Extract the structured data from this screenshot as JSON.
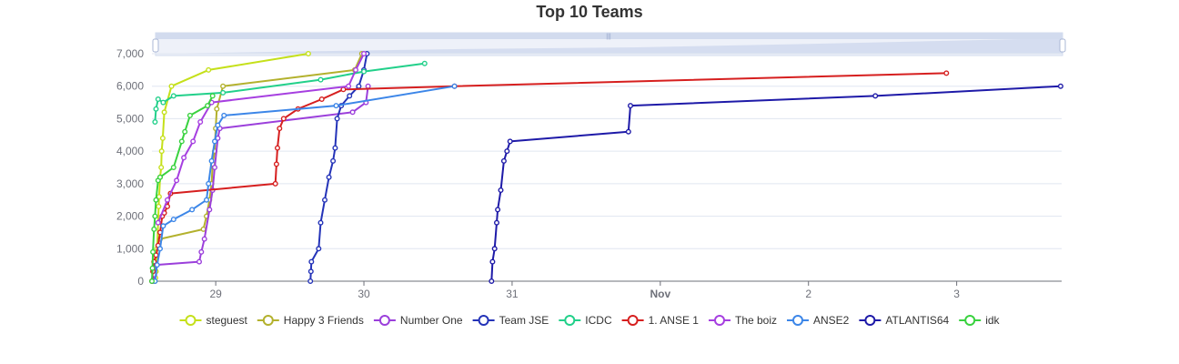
{
  "chart_data": {
    "type": "line",
    "title": "Top 10 Teams",
    "xlabel": "",
    "ylabel": "",
    "x_axis": {
      "kind": "time",
      "min": "2021-10-28T13:40:00",
      "max": "2021-11-03T17:00:00",
      "ticks": [
        {
          "value": "2021-10-29T00:00:00",
          "label": "29",
          "bold": false
        },
        {
          "value": "2021-10-30T00:00:00",
          "label": "30",
          "bold": false
        },
        {
          "value": "2021-10-31T00:00:00",
          "label": "31",
          "bold": false
        },
        {
          "value": "2021-11-01T00:00:00",
          "label": "Nov",
          "bold": true
        },
        {
          "value": "2021-11-02T00:00:00",
          "label": "2",
          "bold": false
        },
        {
          "value": "2021-11-03T00:00:00",
          "label": "3",
          "bold": false
        }
      ]
    },
    "y_axis": {
      "min": 0,
      "max": 7000,
      "ticks": [
        {
          "value": 0,
          "label": "0"
        },
        {
          "value": 1000,
          "label": "1,000"
        },
        {
          "value": 2000,
          "label": "2,000"
        },
        {
          "value": 3000,
          "label": "3,000"
        },
        {
          "value": 4000,
          "label": "4,000"
        },
        {
          "value": 5000,
          "label": "5,000"
        },
        {
          "value": 6000,
          "label": "6,000"
        },
        {
          "value": 7000,
          "label": "7,000"
        }
      ]
    },
    "grid": true,
    "legend_position": "bottom",
    "datazoom_slider": {
      "start": 0,
      "end": 100
    },
    "series": [
      {
        "name": "steguest",
        "color": "#c5e01a",
        "points": [
          [
            "2021-10-28T14:10:00",
            0
          ],
          [
            "2021-10-28T14:15:00",
            100
          ],
          [
            "2021-10-28T14:20:00",
            300
          ],
          [
            "2021-10-28T14:30:00",
            1000
          ],
          [
            "2021-10-28T14:40:00",
            1800
          ],
          [
            "2021-10-28T14:45:00",
            2300
          ],
          [
            "2021-10-28T14:50:00",
            2600
          ],
          [
            "2021-10-28T15:00:00",
            3200
          ],
          [
            "2021-10-28T15:10:00",
            3500
          ],
          [
            "2021-10-28T15:15:00",
            4000
          ],
          [
            "2021-10-28T15:25:00",
            4400
          ],
          [
            "2021-10-28T15:40:00",
            5200
          ],
          [
            "2021-10-28T16:50:00",
            6000
          ],
          [
            "2021-10-28T22:50:00",
            6500
          ],
          [
            "2021-10-29T15:00:00",
            7000
          ]
        ]
      },
      {
        "name": "Happy 3 Friends",
        "color": "#b3b12d",
        "points": [
          [
            "2021-10-28T15:00:00",
            1300
          ],
          [
            "2021-10-28T22:00:00",
            1600
          ],
          [
            "2021-10-28T22:30:00",
            2000
          ],
          [
            "2021-10-28T23:00:00",
            2500
          ],
          [
            "2021-10-28T23:20:00",
            3000
          ],
          [
            "2021-10-28T23:30:00",
            3600
          ],
          [
            "2021-10-28T23:50:00",
            4000
          ],
          [
            "2021-10-29T00:00:00",
            4700
          ],
          [
            "2021-10-29T00:10:00",
            5300
          ],
          [
            "2021-10-29T01:10:00",
            6000
          ],
          [
            "2021-10-29T22:30:00",
            6500
          ],
          [
            "2021-10-29T23:40:00",
            7000
          ]
        ]
      },
      {
        "name": "Number One",
        "color": "#9b3fdb",
        "points": [
          [
            "2021-10-28T13:50:00",
            0
          ],
          [
            "2021-10-28T14:05:00",
            200
          ],
          [
            "2021-10-28T14:20:00",
            500
          ],
          [
            "2021-10-28T21:20:00",
            600
          ],
          [
            "2021-10-28T21:40:00",
            900
          ],
          [
            "2021-10-28T22:10:00",
            1300
          ],
          [
            "2021-10-28T23:00:00",
            2200
          ],
          [
            "2021-10-28T23:30:00",
            2800
          ],
          [
            "2021-10-28T23:50:00",
            3500
          ],
          [
            "2021-10-29T00:20:00",
            4400
          ],
          [
            "2021-10-29T00:40:00",
            4700
          ],
          [
            "2021-10-29T22:10:00",
            5200
          ],
          [
            "2021-10-30T00:20:00",
            5500
          ],
          [
            "2021-10-30T00:40:00",
            6000
          ]
        ]
      },
      {
        "name": "Team JSE",
        "color": "#2433b8",
        "points": [
          [
            "2021-10-29T15:20:00",
            0
          ],
          [
            "2021-10-29T15:25:00",
            300
          ],
          [
            "2021-10-29T15:30:00",
            600
          ],
          [
            "2021-10-29T16:40:00",
            1000
          ],
          [
            "2021-10-29T17:00:00",
            1800
          ],
          [
            "2021-10-29T17:40:00",
            2500
          ],
          [
            "2021-10-29T18:20:00",
            3200
          ],
          [
            "2021-10-29T19:00:00",
            3700
          ],
          [
            "2021-10-29T19:20:00",
            4100
          ],
          [
            "2021-10-29T19:40:00",
            5000
          ],
          [
            "2021-10-29T20:20:00",
            5400
          ],
          [
            "2021-10-29T21:40:00",
            5700
          ],
          [
            "2021-10-29T23:10:00",
            6000
          ],
          [
            "2021-10-30T00:00:00",
            6500
          ],
          [
            "2021-10-30T00:30:00",
            7000
          ]
        ]
      },
      {
        "name": "ICDC",
        "color": "#22d08a",
        "points": [
          [
            "2021-10-28T14:10:00",
            4900
          ],
          [
            "2021-10-28T14:20:00",
            5300
          ],
          [
            "2021-10-28T14:40:00",
            5600
          ],
          [
            "2021-10-28T15:30:00",
            5500
          ],
          [
            "2021-10-28T17:10:00",
            5700
          ],
          [
            "2021-10-29T01:10:00",
            5800
          ],
          [
            "2021-10-29T17:00:00",
            6200
          ],
          [
            "2021-10-30T00:00:00",
            6450
          ],
          [
            "2021-10-30T09:50:00",
            6700
          ]
        ]
      },
      {
        "name": "1. ANSE 1",
        "color": "#d61f1f",
        "points": [
          [
            "2021-10-28T13:40:00",
            0
          ],
          [
            "2021-10-28T13:50:00",
            300
          ],
          [
            "2021-10-28T14:00:00",
            600
          ],
          [
            "2021-10-28T14:20:00",
            800
          ],
          [
            "2021-10-28T14:40:00",
            1100
          ],
          [
            "2021-10-28T15:00:00",
            1500
          ],
          [
            "2021-10-28T15:20:00",
            2000
          ],
          [
            "2021-10-28T15:40:00",
            2100
          ],
          [
            "2021-10-28T16:10:00",
            2300
          ],
          [
            "2021-10-28T16:40:00",
            2700
          ],
          [
            "2021-10-29T09:40:00",
            3000
          ],
          [
            "2021-10-29T09:50:00",
            3600
          ],
          [
            "2021-10-29T10:00:00",
            4100
          ],
          [
            "2021-10-29T10:20:00",
            4700
          ],
          [
            "2021-10-29T11:00:00",
            5000
          ],
          [
            "2021-10-29T13:20:00",
            5300
          ],
          [
            "2021-10-29T17:10:00",
            5600
          ],
          [
            "2021-10-29T20:40:00",
            5900
          ],
          [
            "2021-10-30T14:40:00",
            6000
          ],
          [
            "2021-11-02T22:20:00",
            6400
          ]
        ]
      },
      {
        "name": "The boiz",
        "color": "#a63fe0",
        "points": [
          [
            "2021-10-28T14:40:00",
            1800
          ],
          [
            "2021-10-28T16:10:00",
            2500
          ],
          [
            "2021-10-28T17:40:00",
            3100
          ],
          [
            "2021-10-28T18:50:00",
            3800
          ],
          [
            "2021-10-28T20:20:00",
            4300
          ],
          [
            "2021-10-28T21:30:00",
            4900
          ],
          [
            "2021-10-28T23:20:00",
            5500
          ],
          [
            "2021-10-29T21:30:00",
            6000
          ],
          [
            "2021-10-29T22:40:00",
            6500
          ],
          [
            "2021-10-30T00:00:00",
            7000
          ]
        ]
      },
      {
        "name": "ANSE2",
        "color": "#3c86e8",
        "points": [
          [
            "2021-10-28T14:10:00",
            0
          ],
          [
            "2021-10-28T14:30:00",
            500
          ],
          [
            "2021-10-28T15:00:00",
            1000
          ],
          [
            "2021-10-28T15:30:00",
            1700
          ],
          [
            "2021-10-28T17:10:00",
            1900
          ],
          [
            "2021-10-28T20:10:00",
            2200
          ],
          [
            "2021-10-28T22:30:00",
            2500
          ],
          [
            "2021-10-28T22:50:00",
            3000
          ],
          [
            "2021-10-28T23:20:00",
            3700
          ],
          [
            "2021-10-28T23:50:00",
            4300
          ],
          [
            "2021-10-29T00:20:00",
            4800
          ],
          [
            "2021-10-29T01:20:00",
            5100
          ],
          [
            "2021-10-29T19:30:00",
            5400
          ],
          [
            "2021-10-30T14:40:00",
            6000
          ]
        ]
      },
      {
        "name": "ATLANTIS64",
        "color": "#1e1aa8",
        "points": [
          [
            "2021-10-30T20:40:00",
            0
          ],
          [
            "2021-10-30T20:50:00",
            600
          ],
          [
            "2021-10-30T21:10:00",
            1000
          ],
          [
            "2021-10-30T21:30:00",
            1800
          ],
          [
            "2021-10-30T21:40:00",
            2200
          ],
          [
            "2021-10-30T22:10:00",
            2800
          ],
          [
            "2021-10-30T22:40:00",
            3700
          ],
          [
            "2021-10-30T23:10:00",
            4000
          ],
          [
            "2021-10-30T23:40:00",
            4300
          ],
          [
            "2021-10-31T18:50:00",
            4600
          ],
          [
            "2021-10-31T19:10:00",
            5400
          ],
          [
            "2021-11-02T10:50:00",
            5700
          ],
          [
            "2021-11-03T16:50:00",
            6000
          ]
        ]
      },
      {
        "name": "idk",
        "color": "#39d23f",
        "points": [
          [
            "2021-10-28T13:40:00",
            0
          ],
          [
            "2021-10-28T13:45:00",
            400
          ],
          [
            "2021-10-28T13:50:00",
            900
          ],
          [
            "2021-10-28T14:00:00",
            1600
          ],
          [
            "2021-10-28T14:10:00",
            2000
          ],
          [
            "2021-10-28T14:20:00",
            2500
          ],
          [
            "2021-10-28T14:40:00",
            3100
          ],
          [
            "2021-10-28T15:00:00",
            3200
          ],
          [
            "2021-10-28T17:10:00",
            3500
          ],
          [
            "2021-10-28T18:30:00",
            4300
          ],
          [
            "2021-10-28T19:00:00",
            4600
          ],
          [
            "2021-10-28T19:50:00",
            5100
          ],
          [
            "2021-10-28T22:40:00",
            5400
          ],
          [
            "2021-10-28T23:30:00",
            5700
          ]
        ]
      }
    ]
  }
}
